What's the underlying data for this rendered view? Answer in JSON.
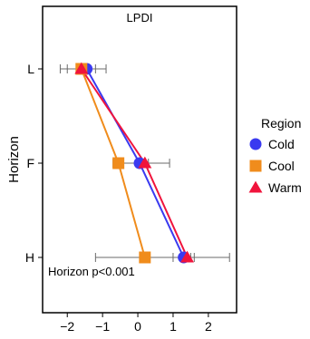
{
  "chart_data": {
    "type": "line",
    "title": "LPDI",
    "xlabel": "",
    "ylabel": "Horizon",
    "xlim": [
      -2.7,
      2.8
    ],
    "xticks": [
      -2,
      -1,
      0,
      1,
      2
    ],
    "xtick_labels": [
      "−2",
      "−1",
      "0",
      "1",
      "2"
    ],
    "categories": [
      "L",
      "F",
      "H"
    ],
    "annotation": "Horizon p<0.001",
    "legend": {
      "title": "Region",
      "position": "right"
    },
    "series": [
      {
        "name": "Cold",
        "color": "#3a3af0",
        "marker": "circle",
        "values": [
          -1.45,
          0.05,
          1.3
        ],
        "error": [
          [
            -2.2,
            -0.9
          ],
          [
            -0.7,
            0.9
          ],
          [
            1.0,
            1.6
          ]
        ]
      },
      {
        "name": "Cool",
        "color": "#f08c1c",
        "marker": "square",
        "values": [
          -1.6,
          -0.55,
          0.2
        ],
        "error": [
          [
            -2.0,
            -1.2
          ],
          [
            -0.7,
            -0.4
          ],
          [
            -1.2,
            2.6
          ]
        ]
      },
      {
        "name": "Warm",
        "color": "#f0143c",
        "marker": "triangle",
        "values": [
          -1.6,
          0.2,
          1.4
        ],
        "error": [
          [
            -1.7,
            -1.5
          ],
          [
            0.1,
            0.3
          ],
          [
            1.3,
            1.5
          ]
        ]
      }
    ]
  }
}
